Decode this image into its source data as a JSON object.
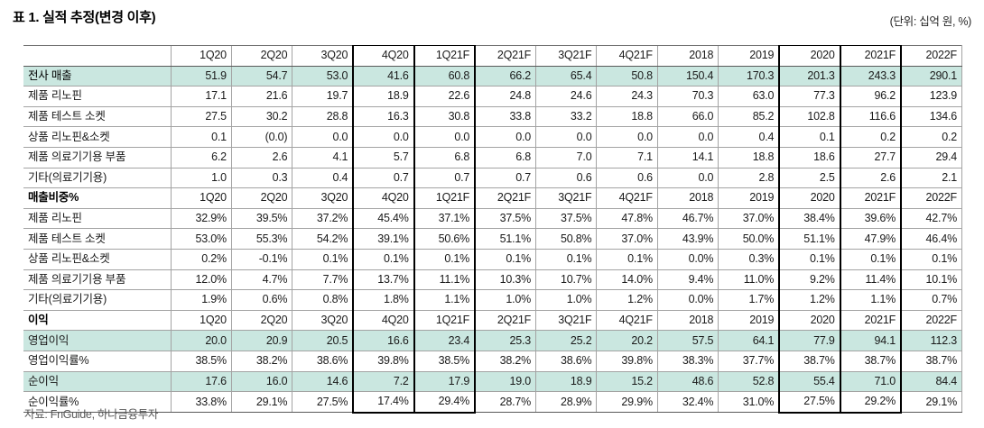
{
  "header": {
    "title": "표 1. 실적 추정(변경 이후)",
    "unit_note": "(단위: 십억 원, %)"
  },
  "footer": {
    "source": "자료: FnGuide, 하나금융투자"
  },
  "table": {
    "accent_color": "#cae7e0",
    "columns": [
      "1Q20",
      "2Q20",
      "3Q20",
      "4Q20",
      "1Q21F",
      "2Q21F",
      "3Q21F",
      "4Q21F",
      "2018",
      "2019",
      "2020",
      "2021F",
      "2022F"
    ],
    "boxed_column_indices": [
      3,
      4,
      10,
      11
    ],
    "sections": [
      {
        "header_label": "",
        "rows": [
          {
            "label": "전사 매출",
            "bold": true,
            "highlight": true,
            "indent": 0,
            "values": [
              "51.9",
              "54.7",
              "53.0",
              "41.6",
              "60.8",
              "66.2",
              "65.4",
              "50.8",
              "150.4",
              "170.3",
              "201.3",
              "243.3",
              "290.1"
            ]
          },
          {
            "label": "제품 리노핀",
            "indent": 1,
            "values": [
              "17.1",
              "21.6",
              "19.7",
              "18.9",
              "22.6",
              "24.8",
              "24.6",
              "24.3",
              "70.3",
              "63.0",
              "77.3",
              "96.2",
              "123.9"
            ]
          },
          {
            "label": "제품 테스트 소켓",
            "indent": 1,
            "values": [
              "27.5",
              "30.2",
              "28.8",
              "16.3",
              "30.8",
              "33.8",
              "33.2",
              "18.8",
              "66.0",
              "85.2",
              "102.8",
              "116.6",
              "134.6"
            ]
          },
          {
            "label": "상품 리노핀&소켓",
            "indent": 2,
            "values": [
              "0.1",
              "(0.0)",
              "0.0",
              "0.0",
              "0.0",
              "0.0",
              "0.0",
              "0.0",
              "0.0",
              "0.4",
              "0.1",
              "0.2",
              "0.2"
            ]
          },
          {
            "label": "제품 의료기기용 부품",
            "indent": 1,
            "values": [
              "6.2",
              "2.6",
              "4.1",
              "5.7",
              "6.8",
              "6.8",
              "7.0",
              "7.1",
              "14.1",
              "18.8",
              "18.6",
              "27.7",
              "29.4"
            ]
          },
          {
            "label": "기타(의료기기용)",
            "indent": 2,
            "values": [
              "1.0",
              "0.3",
              "0.4",
              "0.7",
              "0.7",
              "0.7",
              "0.6",
              "0.6",
              "0.0",
              "2.8",
              "2.5",
              "2.6",
              "2.1"
            ]
          }
        ]
      },
      {
        "header_label": "매출비중%",
        "rows": [
          {
            "label": "제품 리노핀",
            "indent": 1,
            "values": [
              "32.9%",
              "39.5%",
              "37.2%",
              "45.4%",
              "37.1%",
              "37.5%",
              "37.5%",
              "47.8%",
              "46.7%",
              "37.0%",
              "38.4%",
              "39.6%",
              "42.7%"
            ]
          },
          {
            "label": "제품 테스트 소켓",
            "indent": 1,
            "values": [
              "53.0%",
              "55.3%",
              "54.2%",
              "39.1%",
              "50.6%",
              "51.1%",
              "50.8%",
              "37.0%",
              "43.9%",
              "50.0%",
              "51.1%",
              "47.9%",
              "46.4%"
            ]
          },
          {
            "label": "상품 리노핀&소켓",
            "indent": 2,
            "values": [
              "0.2%",
              "-0.1%",
              "0.1%",
              "0.1%",
              "0.1%",
              "0.1%",
              "0.1%",
              "0.1%",
              "0.0%",
              "0.3%",
              "0.1%",
              "0.1%",
              "0.1%"
            ]
          },
          {
            "label": "제품 의료기기용 부품",
            "indent": 1,
            "values": [
              "12.0%",
              "4.7%",
              "7.7%",
              "13.7%",
              "11.1%",
              "10.3%",
              "10.7%",
              "14.0%",
              "9.4%",
              "11.0%",
              "9.2%",
              "11.4%",
              "10.1%"
            ]
          },
          {
            "label": "기타(의료기기용)",
            "indent": 2,
            "values": [
              "1.9%",
              "0.6%",
              "0.8%",
              "1.8%",
              "1.1%",
              "1.0%",
              "1.0%",
              "1.2%",
              "0.0%",
              "1.7%",
              "1.2%",
              "1.1%",
              "0.7%"
            ]
          }
        ]
      },
      {
        "header_label": "이익",
        "rows": [
          {
            "label": "영업이익",
            "indent": 1,
            "highlight": true,
            "values": [
              "20.0",
              "20.9",
              "20.5",
              "16.6",
              "23.4",
              "25.3",
              "25.2",
              "20.2",
              "57.5",
              "64.1",
              "77.9",
              "94.1",
              "112.3"
            ]
          },
          {
            "label": "영업이익률%",
            "indent": 2,
            "values": [
              "38.5%",
              "38.2%",
              "38.6%",
              "39.8%",
              "38.5%",
              "38.2%",
              "38.6%",
              "39.8%",
              "38.3%",
              "37.7%",
              "38.7%",
              "38.7%",
              "38.7%"
            ]
          },
          {
            "label": "순이익",
            "indent": 1,
            "highlight": true,
            "values": [
              "17.6",
              "16.0",
              "14.6",
              "7.2",
              "17.9",
              "19.0",
              "18.9",
              "15.2",
              "48.6",
              "52.8",
              "55.4",
              "71.0",
              "84.4"
            ]
          },
          {
            "label": "순이익률%",
            "indent": 2,
            "values": [
              "33.8%",
              "29.1%",
              "27.5%",
              "17.4%",
              "29.4%",
              "28.7%",
              "28.9%",
              "29.9%",
              "32.4%",
              "31.0%",
              "27.5%",
              "29.2%",
              "29.1%"
            ]
          }
        ]
      }
    ]
  }
}
